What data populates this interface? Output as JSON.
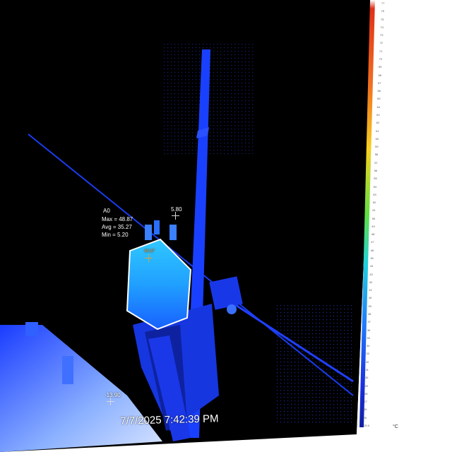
{
  "measurement": {
    "area_name": "A0",
    "max_text": "Max = 48.87",
    "avg_text": "Avg = 35.27",
    "min_text": "Min = 5.20",
    "hot_marker": "48.87",
    "spot_top": "5.80",
    "spot_bottom": "-13.90"
  },
  "timestamp": "7/7/2025 7:42:39 PM",
  "color_scale": {
    "unit": "°C",
    "colors": {
      "hot": "#e8401a",
      "warm": "#f0c020",
      "mid": "#40e040",
      "cool": "#20c0f0",
      "cold": "#1020c0"
    },
    "ticks": [
      "77",
      "76",
      "75",
      "74",
      "73",
      "72",
      "71",
      "70",
      "69",
      "68",
      "67",
      "66",
      "65",
      "64",
      "63",
      "62",
      "61",
      "60",
      "59",
      "58",
      "57",
      "56",
      "55",
      "54",
      "53",
      "52",
      "51",
      "50",
      "49",
      "48",
      "47",
      "46",
      "45",
      "44",
      "43",
      "42",
      "41",
      "40",
      "39",
      "38",
      "37",
      "36",
      "35",
      "34",
      "33",
      "32",
      "31",
      "30",
      "29",
      "28",
      "27",
      "26",
      "25",
      "-20.0"
    ]
  },
  "colors": {
    "background": "#000000",
    "thermal_blue": "#1a3cff",
    "region_outline": "#ffffff"
  }
}
